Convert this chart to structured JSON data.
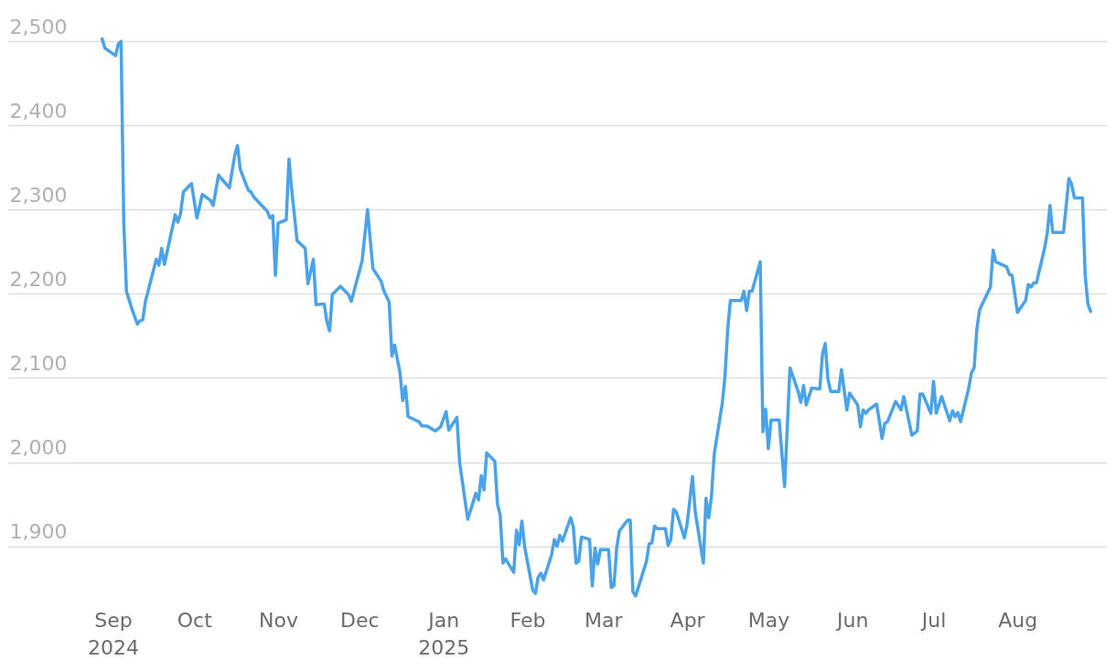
{
  "chart_data": {
    "type": "line",
    "x": [
      "2024-08-28",
      "2024-08-29",
      "2024-09-02",
      "2024-09-03",
      "2024-09-04",
      "2024-09-05",
      "2024-09-06",
      "2024-09-08",
      "2024-09-10",
      "2024-09-11",
      "2024-09-12",
      "2024-09-13",
      "2024-09-17",
      "2024-09-18",
      "2024-09-19",
      "2024-09-20",
      "2024-09-24",
      "2024-09-25",
      "2024-09-26",
      "2024-09-27",
      "2024-09-30",
      "2024-10-02",
      "2024-10-04",
      "2024-10-07",
      "2024-10-08",
      "2024-10-10",
      "2024-10-11",
      "2024-10-14",
      "2024-10-16",
      "2024-10-17",
      "2024-10-18",
      "2024-10-21",
      "2024-10-22",
      "2024-10-23",
      "2024-10-28",
      "2024-10-29",
      "2024-10-30",
      "2024-10-31",
      "2024-11-01",
      "2024-11-04",
      "2024-11-05",
      "2024-11-06",
      "2024-11-08",
      "2024-11-11",
      "2024-11-12",
      "2024-11-14",
      "2024-11-15",
      "2024-11-18",
      "2024-11-19",
      "2024-11-20",
      "2024-11-21",
      "2024-11-24",
      "2024-11-27",
      "2024-11-28",
      "2024-12-02",
      "2024-12-04",
      "2024-12-06",
      "2024-12-09",
      "2024-12-10",
      "2024-12-12",
      "2024-12-13",
      "2024-12-14",
      "2024-12-16",
      "2024-12-17",
      "2024-12-18",
      "2024-12-19",
      "2024-12-23",
      "2024-12-24",
      "2024-12-26",
      "2024-12-29",
      "2024-12-31",
      "2025-01-02",
      "2025-01-03",
      "2025-01-06",
      "2025-01-07",
      "2025-01-10",
      "2025-01-13",
      "2025-01-14",
      "2025-01-15",
      "2025-01-16",
      "2025-01-17",
      "2025-01-20",
      "2025-01-21",
      "2025-01-22",
      "2025-01-23",
      "2025-01-24",
      "2025-01-27",
      "2025-01-28",
      "2025-01-29",
      "2025-01-30",
      "2025-01-31",
      "2025-02-03",
      "2025-02-04",
      "2025-02-05",
      "2025-02-06",
      "2025-02-07",
      "2025-02-10",
      "2025-02-11",
      "2025-02-12",
      "2025-02-13",
      "2025-02-14",
      "2025-02-17",
      "2025-02-18",
      "2025-02-19",
      "2025-02-20",
      "2025-02-21",
      "2025-02-24",
      "2025-02-25",
      "2025-02-26",
      "2025-02-27",
      "2025-02-28",
      "2025-03-03",
      "2025-03-04",
      "2025-03-05",
      "2025-03-06",
      "2025-03-07",
      "2025-03-10",
      "2025-03-11",
      "2025-03-12",
      "2025-03-13",
      "2025-03-17",
      "2025-03-18",
      "2025-03-19",
      "2025-03-20",
      "2025-03-21",
      "2025-03-24",
      "2025-03-25",
      "2025-03-26",
      "2025-03-27",
      "2025-03-28",
      "2025-03-31",
      "2025-04-01",
      "2025-04-03",
      "2025-04-04",
      "2025-04-07",
      "2025-04-08",
      "2025-04-09",
      "2025-04-10",
      "2025-04-11",
      "2025-04-14",
      "2025-04-15",
      "2025-04-16",
      "2025-04-17",
      "2025-04-21",
      "2025-04-22",
      "2025-04-23",
      "2025-04-24",
      "2025-04-25",
      "2025-04-28",
      "2025-04-29",
      "2025-04-30",
      "2025-05-01",
      "2025-05-02",
      "2025-05-05",
      "2025-05-07",
      "2025-05-09",
      "2025-05-12",
      "2025-05-13",
      "2025-05-14",
      "2025-05-15",
      "2025-05-17",
      "2025-05-20",
      "2025-05-21",
      "2025-05-22",
      "2025-05-23",
      "2025-05-24",
      "2025-05-27",
      "2025-05-28",
      "2025-05-30",
      "2025-05-31",
      "2025-06-03",
      "2025-06-04",
      "2025-06-05",
      "2025-06-06",
      "2025-06-07",
      "2025-06-10",
      "2025-06-12",
      "2025-06-13",
      "2025-06-14",
      "2025-06-17",
      "2025-06-19",
      "2025-06-20",
      "2025-06-23",
      "2025-06-25",
      "2025-06-26",
      "2025-06-27",
      "2025-06-30",
      "2025-07-01",
      "2025-07-02",
      "2025-07-04",
      "2025-07-07",
      "2025-07-08",
      "2025-07-09",
      "2025-07-10",
      "2025-07-11",
      "2025-07-14",
      "2025-07-15",
      "2025-07-16",
      "2025-07-17",
      "2025-07-18",
      "2025-07-22",
      "2025-07-23",
      "2025-07-24",
      "2025-07-28",
      "2025-07-29",
      "2025-07-30",
      "2025-08-01",
      "2025-08-04",
      "2025-08-05",
      "2025-08-06",
      "2025-08-07",
      "2025-08-08",
      "2025-08-11",
      "2025-08-12",
      "2025-08-13",
      "2025-08-14",
      "2025-08-18",
      "2025-08-20",
      "2025-08-21",
      "2025-08-22",
      "2025-08-25",
      "2025-08-26",
      "2025-08-27",
      "2025-08-28"
    ],
    "series": [
      {
        "color": "#4aa3e8",
        "values": [
          2503,
          2492,
          2483,
          2497,
          2500,
          2285,
          2203,
          2182,
          2164,
          2168,
          2169,
          2191,
          2241,
          2234,
          2254,
          2235,
          2294,
          2285,
          2296,
          2321,
          2331,
          2290,
          2318,
          2311,
          2305,
          2341,
          2337,
          2326,
          2365,
          2376,
          2348,
          2323,
          2321,
          2315,
          2298,
          2290,
          2293,
          2222,
          2284,
          2288,
          2360,
          2324,
          2263,
          2254,
          2212,
          2241,
          2187,
          2188,
          2167,
          2156,
          2199,
          2209,
          2199,
          2191,
          2239,
          2300,
          2230,
          2215,
          2204,
          2190,
          2126,
          2139,
          2106,
          2073,
          2090,
          2054,
          2048,
          2043,
          2043,
          2037,
          2042,
          2060,
          2038,
          2053,
          2000,
          1932,
          1963,
          1955,
          1984,
          1967,
          2011,
          2001,
          1950,
          1937,
          1880,
          1885,
          1869,
          1919,
          1902,
          1930,
          1900,
          1848,
          1844,
          1863,
          1868,
          1860,
          1890,
          1908,
          1900,
          1913,
          1906,
          1934,
          1923,
          1880,
          1882,
          1911,
          1908,
          1853,
          1898,
          1879,
          1896,
          1896,
          1851,
          1853,
          1898,
          1918,
          1931,
          1931,
          1846,
          1841,
          1882,
          1903,
          1904,
          1924,
          1921,
          1921,
          1901,
          1908,
          1944,
          1941,
          1910,
          1926,
          1983,
          1941,
          1880,
          1957,
          1934,
          1959,
          2009,
          2070,
          2102,
          2158,
          2192,
          2192,
          2203,
          2180,
          2203,
          2203,
          2238,
          2036,
          2063,
          2016,
          2050,
          2050,
          1971,
          2112,
          2084,
          2071,
          2091,
          2068,
          2088,
          2087,
          2128,
          2141,
          2099,
          2084,
          2084,
          2110,
          2062,
          2082,
          2068,
          2042,
          2062,
          2058,
          2062,
          2069,
          2028,
          2046,
          2048,
          2072,
          2062,
          2078,
          2032,
          2037,
          2081,
          2081,
          2058,
          2096,
          2058,
          2078,
          2049,
          2061,
          2054,
          2059,
          2048,
          2088,
          2106,
          2112,
          2158,
          2181,
          2208,
          2252,
          2238,
          2232,
          2223,
          2222,
          2178,
          2192,
          2211,
          2208,
          2213,
          2213,
          2254,
          2272,
          2305,
          2273,
          2273,
          2337,
          2330,
          2314,
          2314,
          2222,
          2188,
          2179
        ]
      }
    ],
    "xlim": [
      "2024-07-24",
      "2025-09-03"
    ],
    "xticks": [
      {
        "value": "2024-09-01",
        "label": "Sep\n2024"
      },
      {
        "value": "2024-10-01",
        "label": "Oct"
      },
      {
        "value": "2024-11-01",
        "label": "Nov"
      },
      {
        "value": "2024-12-01",
        "label": "Dec"
      },
      {
        "value": "2025-01-01",
        "label": "Jan\n2025"
      },
      {
        "value": "2025-02-01",
        "label": "Feb"
      },
      {
        "value": "2025-03-01",
        "label": "Mar"
      },
      {
        "value": "2025-04-01",
        "label": "Apr"
      },
      {
        "value": "2025-05-01",
        "label": "May"
      },
      {
        "value": "2025-06-01",
        "label": "Jun"
      },
      {
        "value": "2025-07-01",
        "label": "Jul"
      },
      {
        "value": "2025-08-01",
        "label": "Aug"
      }
    ],
    "ylim": [
      1830,
      2510
    ],
    "yticks": [
      {
        "value": 1900,
        "label": "1,900"
      },
      {
        "value": 2000,
        "label": "2,000"
      },
      {
        "value": 2100,
        "label": "2,100"
      },
      {
        "value": 2200,
        "label": "2,200"
      },
      {
        "value": 2300,
        "label": "2,300"
      },
      {
        "value": 2400,
        "label": "2,400"
      },
      {
        "value": 2500,
        "label": "2,500"
      }
    ],
    "grid": "y"
  }
}
